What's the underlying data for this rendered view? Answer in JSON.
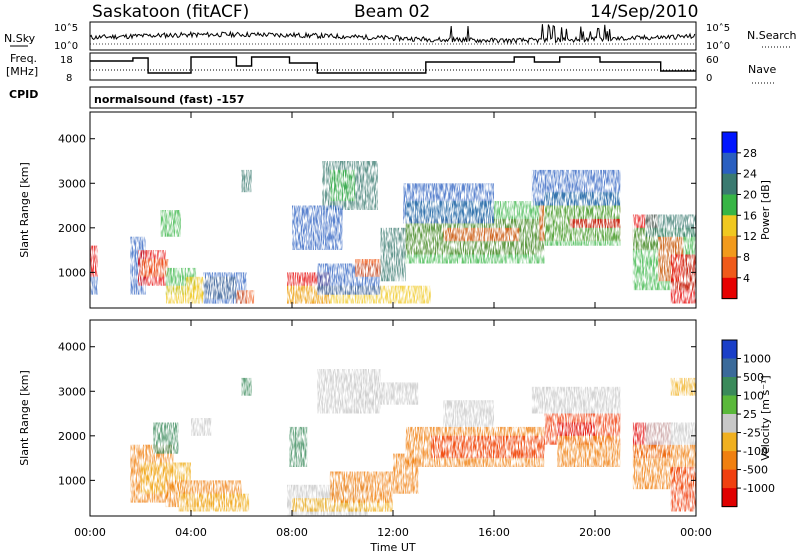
{
  "header": {
    "station": "Saskatoon (fitACF)",
    "beam": "Beam 02",
    "date": "14/Sep/2010"
  },
  "strip_labels": {
    "nsky": "N.Sky",
    "nsearch": "N.Search",
    "freq_line1": "Freq.",
    "freq_line2": "[MHz]",
    "nave": "Nave",
    "cpid": "CPID",
    "noise_ticks": [
      "10^5",
      "10^0"
    ],
    "freq_ticks": [
      "18",
      "8"
    ],
    "nave_ticks": [
      "60",
      "0"
    ]
  },
  "cpid_text": "normalsound (fast) -157",
  "chart_data": [
    {
      "type": "heatmap",
      "name": "power-panel",
      "ylabel": "Slant Range [km]",
      "xlabel": "",
      "yticks": [
        "1000",
        "2000",
        "3000",
        "4000"
      ],
      "ylim": [
        200,
        4600
      ],
      "xlim": [
        0,
        24
      ],
      "colorbar": {
        "label": "Power [dB]",
        "ticks": [
          "4",
          "8",
          "12",
          "16",
          "20",
          "24",
          "28"
        ],
        "colors": [
          "#0016ff",
          "#2a5fc0",
          "#3a7a70",
          "#37b545",
          "#f0c820",
          "#f29a1c",
          "#ef5a1a",
          "#e60000"
        ]
      }
    },
    {
      "type": "heatmap",
      "name": "velocity-panel",
      "ylabel": "Slant Range [km]",
      "xlabel": "Time UT",
      "yticks": [
        "1000",
        "2000",
        "3000",
        "4000"
      ],
      "xticks": [
        "00:00",
        "04:00",
        "08:00",
        "12:00",
        "16:00",
        "20:00",
        "00:00"
      ],
      "ylim": [
        200,
        4600
      ],
      "xlim": [
        0,
        24
      ],
      "colorbar": {
        "label": "Velocity [m s⁻¹]",
        "ticks": [
          "1000",
          "500",
          "100",
          "25",
          "-25",
          "-100",
          "-500",
          "-1000"
        ],
        "colors": [
          "#1a3fc8",
          "#3a6a9a",
          "#3a8a5a",
          "#5ab83a",
          "#c8c8c8",
          "#f0b020",
          "#f08010",
          "#f04010",
          "#e00000"
        ]
      }
    }
  ]
}
